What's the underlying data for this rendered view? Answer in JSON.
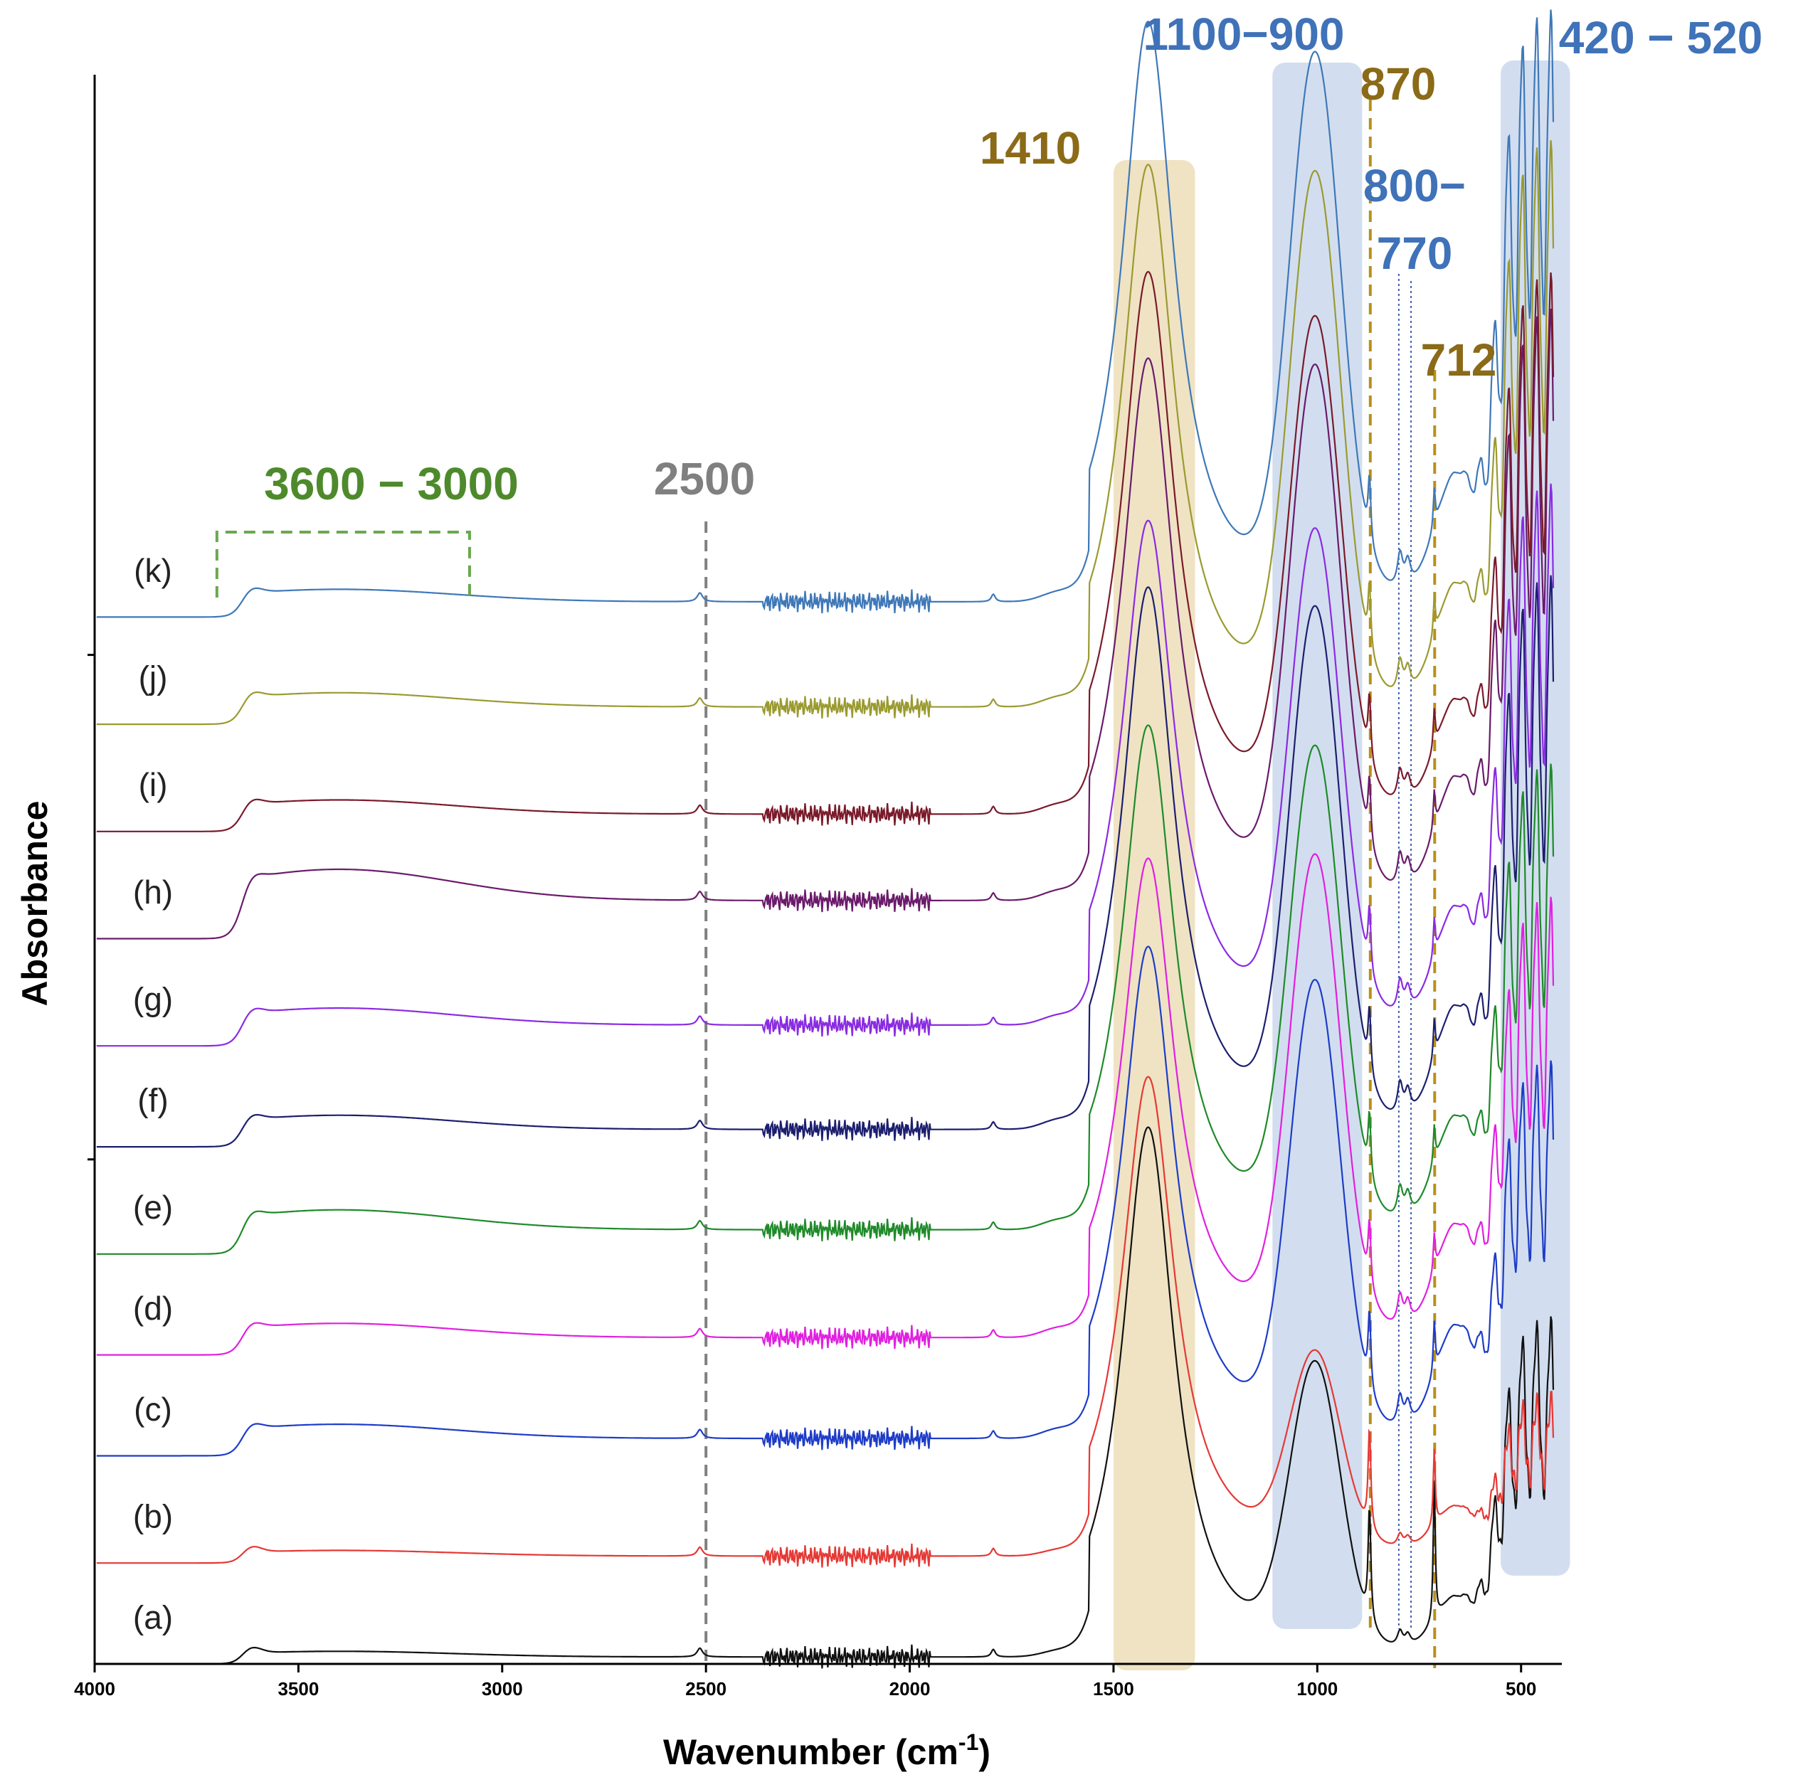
{
  "chart_data": {
    "type": "line",
    "title": "",
    "xlabel": "Wavenumber (cm",
    "xlabel_sup": "-1",
    "xlabel_close": ")",
    "ylabel": "Absorbance",
    "xlim": [
      4000,
      400
    ],
    "x_reversed": true,
    "ylim": [
      0,
      12.6
    ],
    "x_ticks": [
      4000,
      3500,
      3000,
      2500,
      2000,
      1500,
      1000,
      500
    ],
    "x_tick_labels": [
      "4000",
      "3500",
      "3000",
      "2500",
      "2000",
      "1500",
      "1000",
      "500"
    ],
    "y_ticks_unlabeled": [
      4.0,
      8.0
    ],
    "series": [
      {
        "name": "(a)",
        "color": "#111111",
        "offset": 0.0,
        "oh": 0.1,
        "c1410": 4.2,
        "s1000": 2.2,
        "low": 1.2,
        "h470": 2.6,
        "n712": 1.1,
        "n870": 0.9
      },
      {
        "name": "(b)",
        "color": "#e53935",
        "offset": 0.8,
        "oh": 0.1,
        "c1410": 3.8,
        "s1000": 1.5,
        "low": 1.0,
        "h470": 1.2,
        "n712": 0.6,
        "n870": 0.8
      },
      {
        "name": "(c)",
        "color": "#1e3cc8",
        "offset": 1.65,
        "oh": 0.25,
        "c1410": 3.9,
        "s1000": 3.5,
        "low": 2.4,
        "h470": 2.9,
        "n712": 0.4,
        "n870": 0.6
      },
      {
        "name": "(d)",
        "color": "#e020e0",
        "offset": 2.45,
        "oh": 0.25,
        "c1410": 3.8,
        "s1000": 3.7,
        "low": 2.4,
        "h470": 3.4,
        "n712": 0.3,
        "n870": 0.5
      },
      {
        "name": "(e)",
        "color": "#1f8a2a",
        "offset": 3.25,
        "oh": 0.35,
        "c1410": 4.0,
        "s1000": 3.7,
        "low": 2.4,
        "h470": 3.6,
        "n712": 0.3,
        "n870": 0.5
      },
      {
        "name": "(f)",
        "color": "#1c1f6e",
        "offset": 4.1,
        "oh": 0.25,
        "c1410": 4.3,
        "s1000": 4.0,
        "low": 2.6,
        "h470": 4.3,
        "n712": 0.3,
        "n870": 0.5
      },
      {
        "name": "(g)",
        "color": "#8a2be2",
        "offset": 4.9,
        "oh": 0.3,
        "c1410": 4.0,
        "s1000": 3.8,
        "low": 2.5,
        "h470": 4.2,
        "n712": 0.3,
        "n870": 0.5
      },
      {
        "name": "(h)",
        "color": "#6a1b6a",
        "offset": 5.75,
        "oh": 0.55,
        "c1410": 4.3,
        "s1000": 4.1,
        "low": 2.6,
        "h470": 4.6,
        "n712": 0.3,
        "n870": 0.5
      },
      {
        "name": "(i)",
        "color": "#7a1a2a",
        "offset": 6.6,
        "oh": 0.25,
        "c1410": 4.3,
        "s1000": 3.8,
        "low": 2.4,
        "h470": 4.2,
        "n712": 0.3,
        "n870": 0.5
      },
      {
        "name": "(j)",
        "color": "#9a9a30",
        "offset": 7.45,
        "oh": 0.25,
        "c1410": 4.3,
        "s1000": 4.1,
        "low": 2.6,
        "h470": 4.4,
        "n712": 0.3,
        "n870": 0.5
      },
      {
        "name": "(k)",
        "color": "#3f78b8",
        "offset": 8.3,
        "oh": 0.22,
        "c1410": 4.6,
        "s1000": 4.2,
        "low": 2.7,
        "h470": 4.6,
        "n712": 0.3,
        "n870": 0.5
      }
    ],
    "highlight_bands": [
      {
        "from": 1500,
        "to": 1300,
        "color": "#efe3c4"
      },
      {
        "from": 1110,
        "to": 890,
        "color": "#d2deef"
      },
      {
        "from": 550,
        "to": 380,
        "color": "#d2deef"
      }
    ],
    "marker_lines": [
      {
        "x": 2500,
        "color": "#808080",
        "style": "dashed"
      },
      {
        "x": 870,
        "color": "#b8901a",
        "style": "dashed"
      },
      {
        "x": 712,
        "color": "#b8901a",
        "style": "dashed"
      },
      {
        "x": 800,
        "color": "#3c5fb0",
        "style": "dotted"
      },
      {
        "x": 770,
        "color": "#3c5fb0",
        "style": "dotted"
      }
    ],
    "annotations": [
      {
        "text": "1410",
        "color": "#8b6a18"
      },
      {
        "text": "1100−900",
        "color": "#3f72b8"
      },
      {
        "text": "870",
        "color": "#8b6a18"
      },
      {
        "text": "800−",
        "color": "#3f72b8"
      },
      {
        "text": "770",
        "color": "#3f72b8"
      },
      {
        "text": "712",
        "color": "#8b6a18"
      },
      {
        "text": "420 − 520",
        "color": "#3f72b8"
      },
      {
        "text": "3600 − 3000",
        "color": "#4e8a2c"
      },
      {
        "text": "2500",
        "color": "#808080"
      }
    ],
    "bracket_3600_3000": {
      "from": 3700,
      "to": 3080,
      "color": "#6aa84f"
    }
  }
}
